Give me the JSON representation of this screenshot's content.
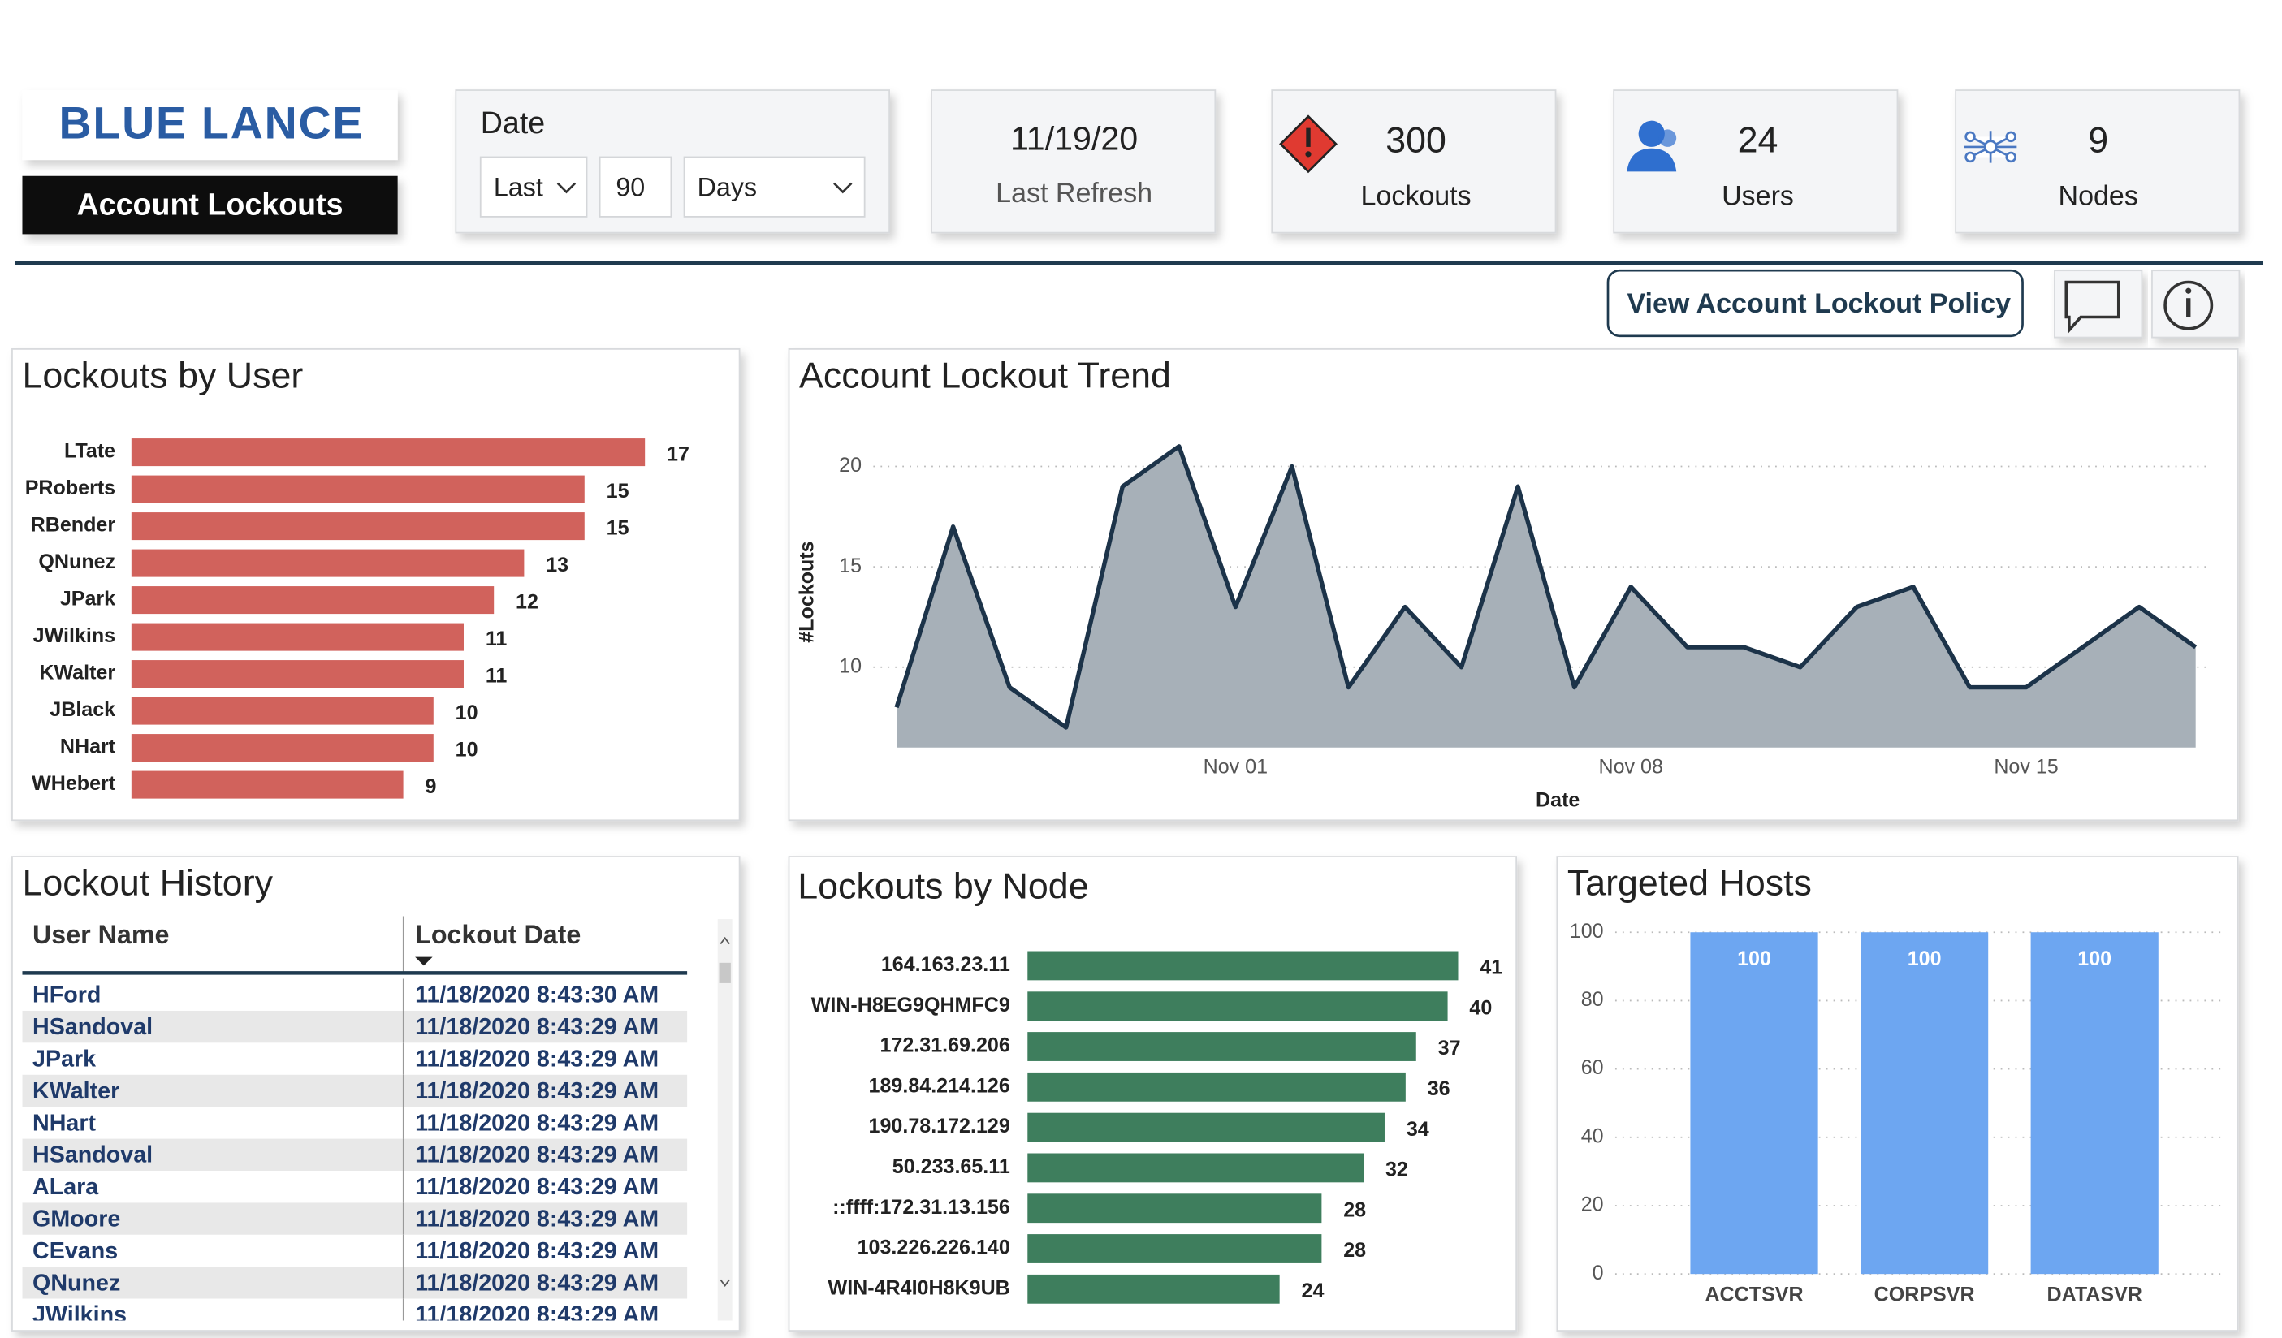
{
  "header": {
    "logo": "BLUE LANCE",
    "title": "Account Lockouts"
  },
  "date_filter": {
    "label": "Date",
    "mode": "Last",
    "amount": 90,
    "unit": "Days"
  },
  "refresh": {
    "value": "11/19/20",
    "label": "Last Refresh"
  },
  "kpis": [
    {
      "value": 300,
      "label": "Lockouts"
    },
    {
      "value": 24,
      "label": "Users"
    },
    {
      "value": 9,
      "label": "Nodes"
    }
  ],
  "button": "View Account Lockout Policy",
  "chart_data": [
    {
      "type": "bar",
      "orientation": "horizontal",
      "title": "Lockouts by User",
      "color": "#d1625c",
      "categories": [
        "LTate",
        "PRoberts",
        "RBender",
        "QNunez",
        "JPark",
        "JWilkins",
        "KWalter",
        "JBlack",
        "NHart",
        "WHebert"
      ],
      "values": [
        17,
        15,
        15,
        13,
        12,
        11,
        11,
        10,
        10,
        9
      ]
    },
    {
      "type": "area",
      "title": "Account Lockout Trend",
      "color": "#a7b0b8",
      "line_color": "#1c3349",
      "x_label": "Date",
      "y_label": "#Lockouts",
      "x": [
        "Oct 26",
        "Oct 27",
        "Oct 28",
        "Oct 29",
        "Oct 30",
        "Oct 31",
        "Nov 01",
        "Nov 02",
        "Nov 03",
        "Nov 04",
        "Nov 05",
        "Nov 06",
        "Nov 07",
        "Nov 08",
        "Nov 09",
        "Nov 10",
        "Nov 11",
        "Nov 12",
        "Nov 13",
        "Nov 14",
        "Nov 15",
        "Nov 16",
        "Nov 17",
        "Nov 18"
      ],
      "values": [
        8,
        17,
        9,
        7,
        19,
        21,
        13,
        20,
        9,
        13,
        10,
        19,
        9,
        14,
        11,
        11,
        10,
        13,
        14,
        9,
        9,
        11,
        13,
        11
      ],
      "xticks": [
        "Nov 01",
        "Nov 08",
        "Nov 15"
      ],
      "ylim": [
        6,
        21.5
      ],
      "yticks": [
        10,
        15,
        20
      ],
      "grid": true
    },
    {
      "type": "bar",
      "orientation": "horizontal",
      "title": "Lockouts by Node",
      "color": "#3e7e5d",
      "categories": [
        "164.163.23.11",
        "WIN-H8EG9QHMFC9",
        "172.31.69.206",
        "189.84.214.126",
        "190.78.172.129",
        "50.233.65.11",
        "::ffff:172.31.13.156",
        "103.226.226.140",
        "WIN-4R4I0H8K9UB"
      ],
      "values": [
        41,
        40,
        37,
        36,
        34,
        32,
        28,
        28,
        24
      ]
    },
    {
      "type": "bar",
      "orientation": "vertical",
      "title": "Targeted Hosts",
      "color": "#6da6f1",
      "categories": [
        "ACCTSVR",
        "CORPSVR",
        "DATASVR"
      ],
      "values": [
        100,
        100,
        100
      ],
      "ylim": [
        0,
        100
      ],
      "yticks": [
        0,
        20,
        40,
        60,
        80,
        100
      ],
      "grid": true
    }
  ],
  "lockout_history": {
    "title": "Lockout History",
    "columns": [
      "User Name",
      "Lockout Date"
    ],
    "rows": [
      [
        "HFord",
        "11/18/2020 8:43:30 AM"
      ],
      [
        "HSandoval",
        "11/18/2020 8:43:29 AM"
      ],
      [
        "JPark",
        "11/18/2020 8:43:29 AM"
      ],
      [
        "KWalter",
        "11/18/2020 8:43:29 AM"
      ],
      [
        "NHart",
        "11/18/2020 8:43:29 AM"
      ],
      [
        "HSandoval",
        "11/18/2020 8:43:29 AM"
      ],
      [
        "ALara",
        "11/18/2020 8:43:29 AM"
      ],
      [
        "GMoore",
        "11/18/2020 8:43:29 AM"
      ],
      [
        "CEvans",
        "11/18/2020 8:43:29 AM"
      ],
      [
        "QNunez",
        "11/18/2020 8:43:29 AM"
      ],
      [
        "JWilkins",
        "11/18/2020 8:43:29 AM"
      ]
    ]
  }
}
